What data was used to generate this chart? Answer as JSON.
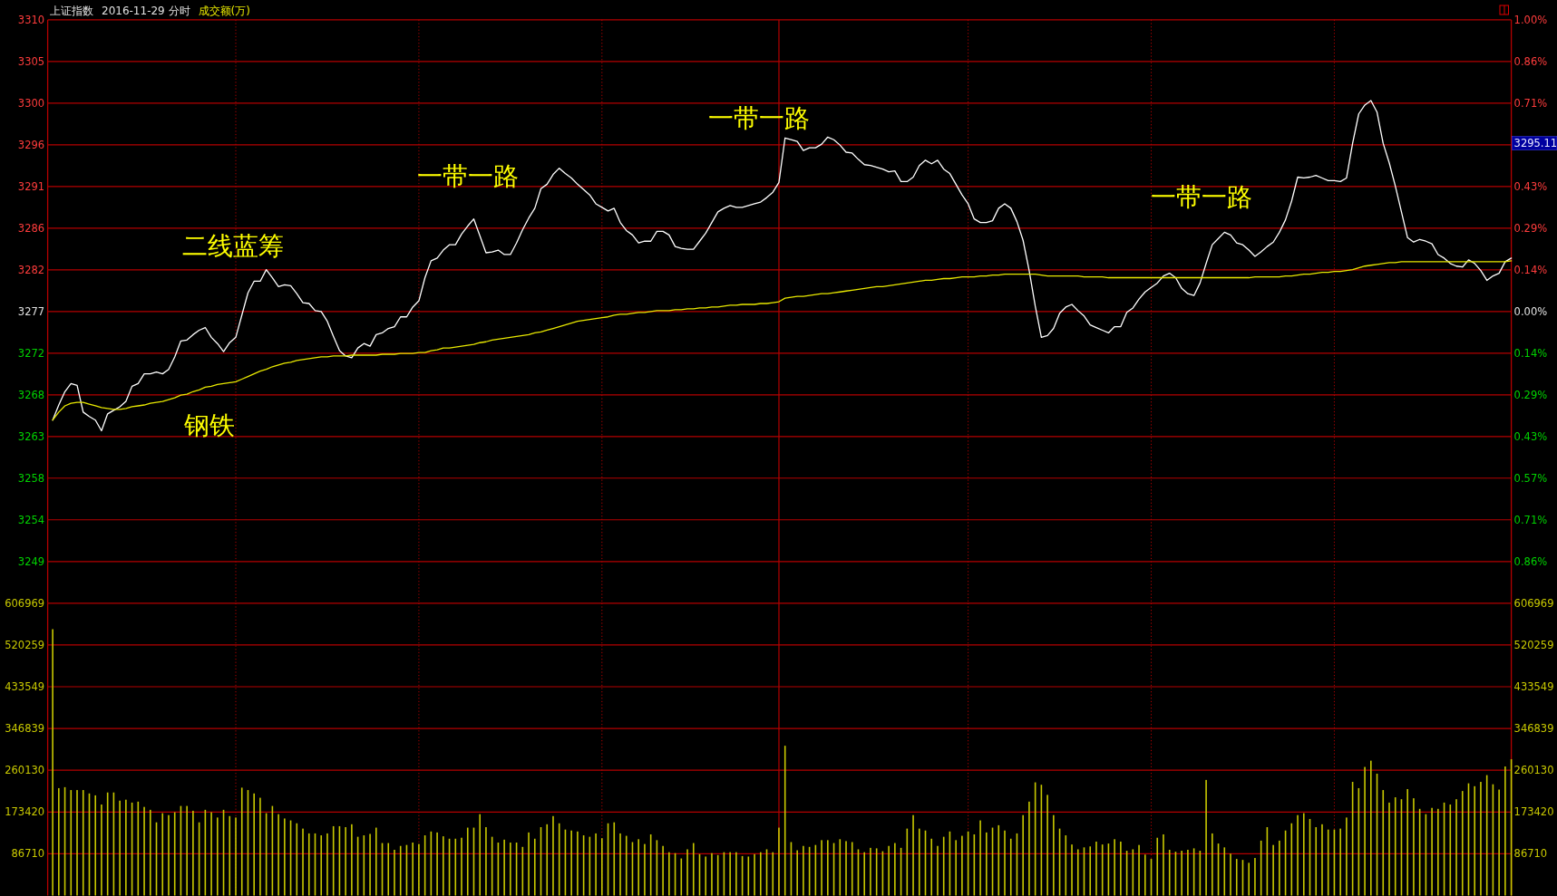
{
  "chart_data": [
    {
      "type": "line",
      "title": "上证指数",
      "subtitle": "2016-11-29 分时",
      "categories": [
        null,
        null,
        null,
        null,
        null,
        null,
        null,
        null,
        null,
        null,
        null,
        null,
        null,
        null,
        null,
        null,
        null,
        null,
        null,
        null,
        null,
        null,
        null,
        null,
        null,
        null,
        null,
        null,
        null,
        null,
        null,
        null,
        null,
        null,
        null,
        null,
        null,
        null,
        null,
        null,
        null,
        null,
        null,
        null,
        null,
        null,
        null,
        null,
        null,
        null,
        null,
        null,
        null,
        null,
        null,
        null,
        null,
        null,
        null,
        null,
        null,
        null,
        null,
        null,
        null,
        null,
        null,
        null,
        null,
        null,
        null,
        null,
        null,
        null,
        null,
        null,
        null,
        null,
        null,
        null,
        null,
        null,
        null,
        null,
        null,
        null,
        null,
        null,
        null,
        null,
        null,
        null,
        null,
        null,
        null,
        null,
        null,
        null,
        null,
        null,
        null,
        null,
        null,
        null,
        null,
        null,
        null,
        null,
        null,
        null,
        null,
        null,
        null,
        null,
        null,
        null,
        null,
        null,
        null,
        null,
        null,
        null,
        null,
        null,
        null,
        null,
        null,
        null,
        null,
        null,
        null,
        null,
        null,
        null,
        null,
        null,
        null,
        null,
        null,
        null,
        null,
        null,
        null,
        null,
        null,
        null,
        null,
        null,
        null,
        null,
        null,
        null,
        null,
        null,
        null,
        null,
        null,
        null,
        null,
        null,
        null,
        null,
        null,
        null,
        null,
        null,
        null,
        null,
        null,
        null,
        null,
        null,
        null,
        null,
        null,
        null,
        null,
        null,
        null,
        null,
        null,
        null,
        null,
        null,
        null,
        null,
        null,
        null,
        null,
        null,
        null,
        null,
        null,
        null,
        null,
        null,
        null,
        null,
        null,
        null,
        null,
        null,
        null,
        null,
        null,
        null,
        null,
        null,
        null,
        null,
        null,
        null,
        null,
        null,
        null,
        null,
        null,
        null,
        null,
        null,
        null,
        null,
        null,
        null,
        null,
        null,
        null,
        null,
        null,
        null,
        null,
        null,
        null,
        null,
        null,
        null,
        null,
        null,
        null,
        null
      ],
      "series": [
        {
          "color": "#ffffff",
          "values": [
            3264.8,
            3266.5,
            3268.0,
            3268.9,
            3268.7,
            3265.7,
            3265.2,
            3264.8,
            3263.6,
            3265.5,
            3265.9,
            3266.3,
            3266.9,
            3268.6,
            3268.9,
            3270.0,
            3270.0,
            3270.2,
            3270.0,
            3270.5,
            3271.9,
            3273.7,
            3273.8,
            3274.4,
            3274.9,
            3275.2,
            3274.1,
            3273.4,
            3272.5,
            3273.5,
            3274.1,
            3276.6,
            3279.1,
            3280.4,
            3280.4,
            3281.7,
            3280.8,
            3279.8,
            3280.0,
            3279.9,
            3279.0,
            3278.0,
            3277.9,
            3277.1,
            3277.0,
            3275.9,
            3274.2,
            3272.6,
            3272.0,
            3271.8,
            3272.9,
            3273.4,
            3273.1,
            3274.4,
            3274.6,
            3275.1,
            3275.3,
            3276.4,
            3276.4,
            3277.5,
            3278.2,
            3280.8,
            3282.7,
            3283.0,
            3283.9,
            3284.5,
            3284.5,
            3285.7,
            3286.6,
            3287.4,
            3285.5,
            3283.6,
            3283.7,
            3283.9,
            3283.4,
            3283.4,
            3284.7,
            3286.2,
            3287.5,
            3288.6,
            3290.8,
            3291.3,
            3292.4,
            3293.1,
            3292.5,
            3292.0,
            3291.3,
            3290.7,
            3290.1,
            3289.1,
            3288.7,
            3288.3,
            3288.6,
            3287.0,
            3286.1,
            3285.6,
            3284.7,
            3284.9,
            3284.9,
            3286.0,
            3286.0,
            3285.6,
            3284.3,
            3284.1,
            3284.0,
            3284.0,
            3284.9,
            3285.8,
            3287.0,
            3288.2,
            3288.6,
            3288.9,
            3288.7,
            3288.7,
            3288.9,
            3289.1,
            3289.3,
            3289.8,
            3290.4,
            3291.5,
            3296.5,
            3296.3,
            3296.1,
            3295.1,
            3295.4,
            3295.4,
            3295.8,
            3296.6,
            3296.3,
            3295.7,
            3294.9,
            3294.8,
            3294.1,
            3293.5,
            3293.4,
            3293.2,
            3293.0,
            3292.7,
            3292.8,
            3291.6,
            3291.6,
            3292.1,
            3293.4,
            3294.0,
            3293.6,
            3294.0,
            3293.0,
            3292.5,
            3291.3,
            3290.1,
            3289.1,
            3287.4,
            3287.0,
            3287.0,
            3287.2,
            3288.6,
            3289.1,
            3288.6,
            3287.1,
            3285.0,
            3281.6,
            3277.6,
            3274.1,
            3274.3,
            3275.1,
            3276.8,
            3277.5,
            3277.8,
            3277.1,
            3276.5,
            3275.5,
            3275.2,
            3274.9,
            3274.6,
            3275.3,
            3275.3,
            3276.9,
            3277.4,
            3278.4,
            3279.2,
            3279.7,
            3280.2,
            3281.0,
            3281.3,
            3280.8,
            3279.6,
            3279.0,
            3278.8,
            3280.2,
            3282.4,
            3284.5,
            3285.2,
            3285.9,
            3285.6,
            3284.7,
            3284.5,
            3283.9,
            3283.2,
            3283.7,
            3284.3,
            3284.8,
            3285.9,
            3287.3,
            3289.4,
            3292.1,
            3292.0,
            3292.1,
            3292.3,
            3292.0,
            3291.7,
            3291.7,
            3291.6,
            3292.0,
            3295.9,
            3299.2,
            3300.2,
            3300.7,
            3299.4,
            3295.9,
            3293.7,
            3291.1,
            3288.2,
            3285.3,
            3284.8,
            3285.1,
            3284.9,
            3284.6,
            3283.4,
            3283.0,
            3282.4,
            3282.1,
            3282.0,
            3282.8,
            3282.4,
            3281.6,
            3280.5,
            3281.0,
            3281.3,
            3282.6,
            3283.0
          ]
        },
        {
          "color": "#e8e800",
          "values": [
            3264.8,
            3265.7,
            3266.4,
            3266.7,
            3266.8,
            3266.8,
            3266.6,
            3266.4,
            3266.2,
            3266.1,
            3266.0,
            3266.0,
            3266.1,
            3266.3,
            3266.4,
            3266.5,
            3266.7,
            3266.8,
            3266.9,
            3267.1,
            3267.3,
            3267.6,
            3267.7,
            3268.0,
            3268.2,
            3268.5,
            3268.6,
            3268.8,
            3268.9,
            3269.0,
            3269.1,
            3269.4,
            3269.7,
            3270.0,
            3270.3,
            3270.5,
            3270.8,
            3271.0,
            3271.2,
            3271.3,
            3271.5,
            3271.6,
            3271.7,
            3271.8,
            3271.9,
            3271.9,
            3272.0,
            3272.0,
            3272.0,
            3272.1,
            3272.1,
            3272.1,
            3272.1,
            3272.1,
            3272.2,
            3272.2,
            3272.2,
            3272.3,
            3272.3,
            3272.3,
            3272.4,
            3272.4,
            3272.6,
            3272.7,
            3272.9,
            3272.9,
            3273.0,
            3273.1,
            3273.2,
            3273.3,
            3273.5,
            3273.6,
            3273.8,
            3273.9,
            3274.0,
            3274.1,
            3274.2,
            3274.3,
            3274.4,
            3274.6,
            3274.7,
            3274.9,
            3275.1,
            3275.3,
            3275.5,
            3275.7,
            3275.9,
            3276.0,
            3276.1,
            3276.2,
            3276.3,
            3276.4,
            3276.6,
            3276.7,
            3276.7,
            3276.8,
            3276.9,
            3276.9,
            3277.0,
            3277.1,
            3277.1,
            3277.1,
            3277.2,
            3277.2,
            3277.3,
            3277.3,
            3277.4,
            3277.4,
            3277.5,
            3277.5,
            3277.6,
            3277.7,
            3277.7,
            3277.8,
            3277.8,
            3277.8,
            3277.9,
            3277.9,
            3278.0,
            3278.1,
            3278.5,
            3278.6,
            3278.7,
            3278.7,
            3278.8,
            3278.9,
            3279.0,
            3279.0,
            3279.1,
            3279.2,
            3279.3,
            3279.4,
            3279.5,
            3279.6,
            3279.7,
            3279.8,
            3279.8,
            3279.9,
            3280.0,
            3280.1,
            3280.2,
            3280.3,
            3280.4,
            3280.5,
            3280.5,
            3280.6,
            3280.7,
            3280.7,
            3280.8,
            3280.9,
            3280.9,
            3280.9,
            3281.0,
            3281.0,
            3281.1,
            3281.1,
            3281.2,
            3281.2,
            3281.2,
            3281.2,
            3281.2,
            3281.2,
            3281.1,
            3281.0,
            3281.0,
            3281.0,
            3281.0,
            3281.0,
            3281.0,
            3280.9,
            3280.9,
            3280.9,
            3280.9,
            3280.8,
            3280.8,
            3280.8,
            3280.8,
            3280.8,
            3280.8,
            3280.8,
            3280.8,
            3280.8,
            3280.8,
            3280.8,
            3280.8,
            3280.8,
            3280.8,
            3280.8,
            3280.8,
            3280.8,
            3280.8,
            3280.8,
            3280.8,
            3280.8,
            3280.8,
            3280.8,
            3280.8,
            3280.9,
            3280.9,
            3280.9,
            3280.9,
            3280.9,
            3281.0,
            3281.0,
            3281.1,
            3281.2,
            3281.2,
            3281.3,
            3281.4,
            3281.4,
            3281.5,
            3281.5,
            3281.6,
            3281.7,
            3281.9,
            3282.1,
            3282.2,
            3282.3,
            3282.4,
            3282.5,
            3282.5,
            3282.6,
            3282.6,
            3282.6,
            3282.6,
            3282.6,
            3282.6,
            3282.6,
            3282.6,
            3282.6,
            3282.6,
            3282.6,
            3282.6,
            3282.6,
            3282.6,
            3282.6,
            3282.6,
            3282.6,
            3282.6,
            3282.7
          ]
        }
      ],
      "ylim": [
        3244.23,
        3309.77
      ],
      "yticks": [
        {
          "value": 3309.77,
          "label": "3310"
        },
        {
          "value": 3305.09,
          "label": "3305"
        },
        {
          "value": 3300.4,
          "label": "3300"
        },
        {
          "value": 3295.72,
          "label": "3296"
        },
        {
          "value": 3291.04,
          "label": "3291"
        },
        {
          "value": 3286.36,
          "label": "3286"
        },
        {
          "value": 3281.68,
          "label": "3282"
        },
        3277,
        {
          "value": 3272.32,
          "label": "3272"
        },
        {
          "value": 3267.64,
          "label": "3268"
        },
        {
          "value": 3262.96,
          "label": "3263"
        },
        {
          "value": 3258.28,
          "label": "3258"
        },
        {
          "value": 3253.6,
          "label": "3254"
        },
        {
          "value": 3248.91,
          "label": "3249"
        }
      ],
      "y2lim": [
        -1,
        1
      ],
      "y2ticks": [
        {
          "value": 1,
          "label": "1.00%"
        },
        {
          "value": 0.857,
          "label": "0.86%"
        },
        {
          "value": 0.714,
          "label": "0.71%"
        },
        {
          "value": 0.429,
          "label": "0.43%"
        },
        {
          "value": 0.286,
          "label": "0.29%"
        },
        {
          "value": 0.143,
          "label": "0.14%"
        },
        {
          "value": 0,
          "label": "0.00%"
        },
        {
          "value": -0.143,
          "label": "0.14%"
        },
        {
          "value": -0.286,
          "label": "0.29%"
        },
        {
          "value": -0.429,
          "label": "0.43%"
        },
        {
          "value": -0.571,
          "label": "0.57%"
        },
        {
          "value": -0.714,
          "label": "0.71%"
        },
        {
          "value": -0.857,
          "label": "0.86%"
        }
      ],
      "annotations": [
        "钢铁",
        "二线蓝筹",
        "一带一路",
        "一带一路",
        "一带一路",
        "3295.11",
        "成交额(万)"
      ],
      "grid": true
    },
    {
      "type": "bar",
      "categories": [
        null,
        null,
        null,
        null,
        null,
        null,
        null,
        null,
        null,
        null,
        null,
        null,
        null,
        null,
        null,
        null,
        null,
        null,
        null,
        null,
        null,
        null,
        null,
        null,
        null,
        null,
        null,
        null,
        null,
        null,
        null,
        null,
        null,
        null,
        null,
        null,
        null,
        null,
        null,
        null,
        null,
        null,
        null,
        null,
        null,
        null,
        null,
        null,
        null,
        null,
        null,
        null,
        null,
        null,
        null,
        null,
        null,
        null,
        null,
        null,
        null,
        null,
        null,
        null,
        null,
        null,
        null,
        null,
        null,
        null,
        null,
        null,
        null,
        null,
        null,
        null,
        null,
        null,
        null,
        null,
        null,
        null,
        null,
        null,
        null,
        null,
        null,
        null,
        null,
        null,
        null,
        null,
        null,
        null,
        null,
        null,
        null,
        null,
        null,
        null,
        null,
        null,
        null,
        null,
        null,
        null,
        null,
        null,
        null,
        null,
        null,
        null,
        null,
        null,
        null,
        null,
        null,
        null,
        null,
        null,
        null,
        null,
        null,
        null,
        null,
        null,
        null,
        null,
        null,
        null,
        null,
        null,
        null,
        null,
        null,
        null,
        null,
        null,
        null,
        null,
        null,
        null,
        null,
        null,
        null,
        null,
        null,
        null,
        null,
        null,
        null,
        null,
        null,
        null,
        null,
        null,
        null,
        null,
        null,
        null,
        null,
        null,
        null,
        null,
        null,
        null,
        null,
        null,
        null,
        null,
        null,
        null,
        null,
        null,
        null,
        null,
        null,
        null,
        null,
        null,
        null,
        null,
        null,
        null,
        null,
        null,
        null,
        null,
        null,
        null,
        null,
        null,
        null,
        null,
        null,
        null,
        null,
        null,
        null,
        null,
        null,
        null,
        null,
        null,
        null,
        null,
        null,
        null,
        null,
        null,
        null,
        null,
        null,
        null,
        null,
        null,
        null,
        null,
        null,
        null,
        null,
        null,
        null,
        null,
        null,
        null,
        null,
        null,
        null,
        null,
        null,
        null,
        null,
        null,
        null,
        null,
        null,
        null,
        null,
        null
      ],
      "color": "#c8c800",
      "values": [
        553000,
        223000,
        225000,
        219000,
        219000,
        219000,
        212000,
        208000,
        189000,
        214000,
        214000,
        197000,
        199000,
        193000,
        195000,
        184000,
        178000,
        152000,
        171000,
        167000,
        173000,
        186000,
        186000,
        176000,
        152000,
        178000,
        173000,
        162000,
        178000,
        165000,
        162000,
        224000,
        219000,
        212000,
        203000,
        171000,
        186000,
        169000,
        160000,
        156000,
        150000,
        139000,
        129000,
        129000,
        125000,
        129000,
        144000,
        144000,
        142000,
        148000,
        122000,
        125000,
        128000,
        141000,
        109000,
        109000,
        95000,
        103000,
        105000,
        110000,
        107000,
        125000,
        133000,
        131000,
        123000,
        118000,
        118000,
        120000,
        141000,
        141000,
        169000,
        142000,
        122000,
        110000,
        116000,
        110000,
        110000,
        101000,
        131000,
        118000,
        142000,
        148000,
        165000,
        150000,
        137000,
        135000,
        133000,
        125000,
        122000,
        129000,
        119000,
        150000,
        152000,
        129000,
        124000,
        111000,
        117000,
        107000,
        127000,
        115000,
        103000,
        90000,
        88000,
        77000,
        96000,
        109000,
        86000,
        81000,
        88000,
        84000,
        90000,
        90000,
        90000,
        82000,
        81000,
        86000,
        90000,
        96000,
        90000,
        141000,
        311000,
        111000,
        94000,
        103000,
        101000,
        105000,
        115000,
        115000,
        109000,
        117000,
        113000,
        111000,
        96000,
        90000,
        99000,
        98000,
        92000,
        103000,
        109000,
        99000,
        139000,
        167000,
        139000,
        135000,
        118000,
        103000,
        122000,
        133000,
        115000,
        124000,
        133000,
        127000,
        156000,
        131000,
        141000,
        146000,
        135000,
        118000,
        129000,
        167000,
        195000,
        235000,
        230000,
        209000,
        167000,
        139000,
        125000,
        106000,
        96000,
        100000,
        102000,
        112000,
        106000,
        108000,
        117000,
        112000,
        93000,
        96000,
        105000,
        85000,
        76000,
        120000,
        127000,
        95000,
        91000,
        93000,
        95000,
        98000,
        93000,
        240000,
        129000,
        108000,
        100000,
        87000,
        76000,
        74000,
        68000,
        78000,
        114000,
        142000,
        105000,
        114000,
        135000,
        150000,
        167000,
        171000,
        159000,
        142000,
        148000,
        137000,
        137000,
        139000,
        162000,
        236000,
        223000,
        267000,
        280000,
        253000,
        219000,
        193000,
        204000,
        200000,
        221000,
        202000,
        180000,
        169000,
        182000,
        180000,
        193000,
        189000,
        200000,
        217000,
        233000,
        227000,
        236000,
        250000,
        231000,
        220000,
        268000,
        283000
      ],
      "ylim": [
        0,
        606969
      ],
      "yticks": [
        86710,
        173420,
        260130,
        346839,
        433549,
        520259,
        606969
      ],
      "y2lim": [
        0,
        606969
      ],
      "y2ticks": [
        86710,
        173420,
        260130,
        346839,
        433549,
        520259,
        606969
      ],
      "grid": true
    }
  ]
}
